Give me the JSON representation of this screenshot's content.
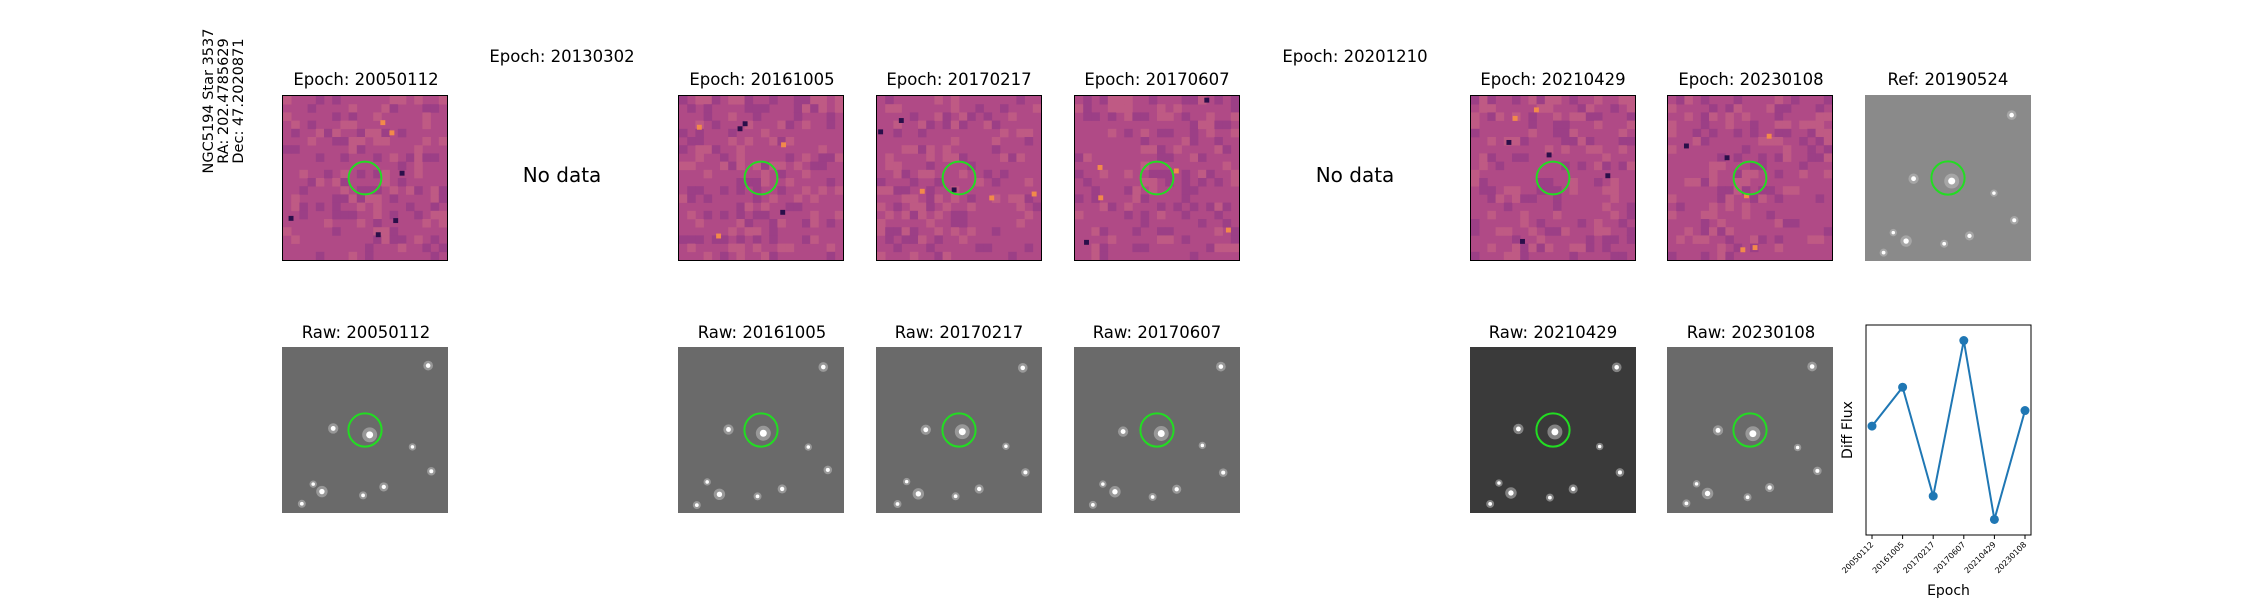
{
  "header": {
    "object_line": "NGC5194 Star 3537",
    "ra_line": "RA: 202.4785629",
    "dec_line": "Dec: 47.2020871"
  },
  "top_row": [
    {
      "title": "Epoch: 20050112",
      "has_data": true,
      "kind": "diff"
    },
    {
      "title": "Epoch: 20130302",
      "has_data": false,
      "message": "No data"
    },
    {
      "title": "Epoch: 20161005",
      "has_data": true,
      "kind": "diff"
    },
    {
      "title": "Epoch: 20170217",
      "has_data": true,
      "kind": "diff"
    },
    {
      "title": "Epoch: 20170607",
      "has_data": true,
      "kind": "diff"
    },
    {
      "title": "Epoch: 20201210",
      "has_data": false,
      "message": "No data"
    },
    {
      "title": "Epoch: 20210429",
      "has_data": true,
      "kind": "diff"
    },
    {
      "title": "Epoch: 20230108",
      "has_data": true,
      "kind": "diff"
    },
    {
      "title": "Ref: 20190524",
      "has_data": true,
      "kind": "ref"
    }
  ],
  "bottom_row": [
    {
      "title": "Raw: 20050112",
      "kind": "raw"
    },
    {
      "title": "Raw: 20161005",
      "kind": "raw"
    },
    {
      "title": "Raw: 20170217",
      "kind": "raw"
    },
    {
      "title": "Raw: 20170607",
      "kind": "raw"
    },
    {
      "title": "Raw: 20210429",
      "kind": "raw"
    },
    {
      "title": "Raw: 20230108",
      "kind": "raw"
    }
  ],
  "colors": {
    "circle": "#22dd22",
    "diff_bg": "#b04a86",
    "line": "#1f77b4"
  },
  "chart_data": {
    "type": "line",
    "x": [
      "20050112",
      "20161005",
      "20170217",
      "20170607",
      "20210429",
      "20230108"
    ],
    "series": [
      {
        "values": [
          0.1,
          0.35,
          -0.35,
          0.65,
          -0.5,
          0.2
        ]
      }
    ],
    "xlabel": "Epoch",
    "ylabel": "Diff Flux",
    "ylim": [
      -0.6,
      0.75
    ],
    "y_ticks_shown": false,
    "grid": false
  }
}
